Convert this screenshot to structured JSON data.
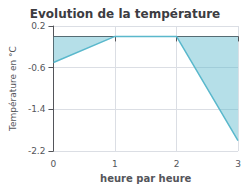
{
  "chart_data": {
    "type": "line",
    "title": "Evolution de la température",
    "xlabel": "heure par heure",
    "ylabel": "Température en °C",
    "x": [
      0,
      1,
      2,
      3
    ],
    "values": [
      -0.5,
      0.0,
      0.0,
      -2.0
    ],
    "color": "#5ab8cc",
    "xlim": [
      0,
      3
    ],
    "xticks": [
      0,
      1,
      2,
      3
    ],
    "ylim": [
      -2.2,
      0.2
    ],
    "yticks": [
      0.2,
      -0.6,
      -1.4,
      -2.2
    ],
    "grid": true
  }
}
